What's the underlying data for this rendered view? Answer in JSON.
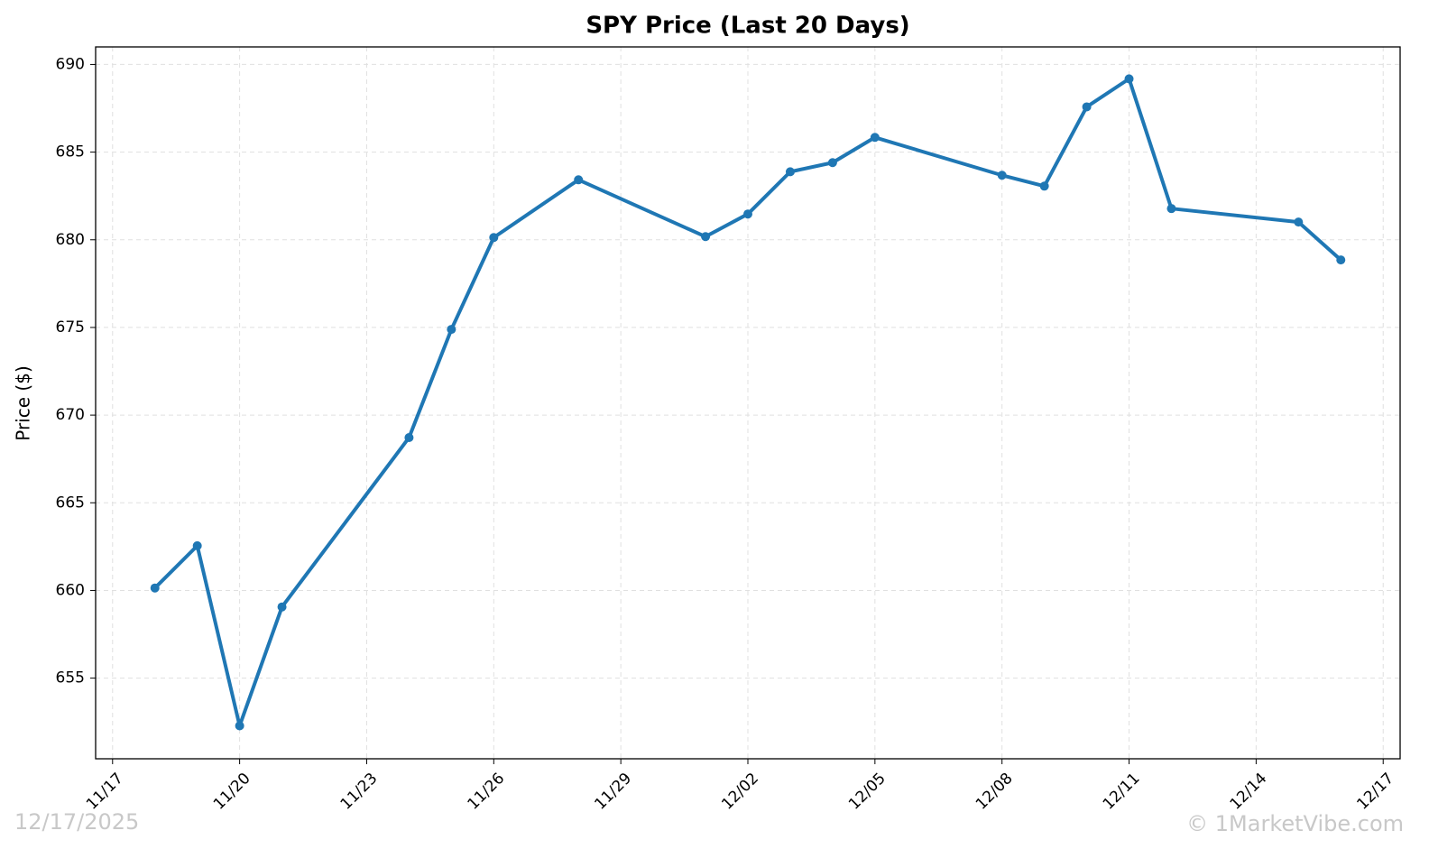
{
  "chart_data": {
    "type": "line",
    "title": "SPY Price (Last 20 Days)",
    "ylabel": "Price ($)",
    "x": [
      "11/18",
      "11/19",
      "11/20",
      "11/21",
      "11/24",
      "11/25",
      "11/26",
      "11/28",
      "12/01",
      "12/02",
      "12/03",
      "12/04",
      "12/05",
      "12/08",
      "12/09",
      "12/10",
      "12/11",
      "12/12",
      "12/15",
      "12/16"
    ],
    "series": [
      {
        "name": "SPY",
        "color": "#1f77b4",
        "values": [
          660.14,
          662.55,
          652.28,
          659.06,
          668.72,
          674.89,
          680.13,
          683.42,
          680.18,
          681.47,
          683.88,
          684.4,
          685.84,
          683.68,
          683.06,
          687.58,
          689.18,
          681.78,
          681.01,
          678.85
        ]
      }
    ],
    "xlim": [
      "11/16.6",
      "12/17.4"
    ],
    "xticks": [
      "11/17",
      "11/20",
      "11/23",
      "11/26",
      "11/29",
      "12/02",
      "12/05",
      "12/08",
      "12/11",
      "12/14",
      "12/17"
    ],
    "ylim": [
      650.4,
      691.0
    ],
    "yticks": [
      655,
      660,
      665,
      670,
      675,
      680,
      685,
      690
    ],
    "grid": true,
    "annotations": [
      "12/17/2025",
      "© 1MarketVibe.com"
    ]
  }
}
